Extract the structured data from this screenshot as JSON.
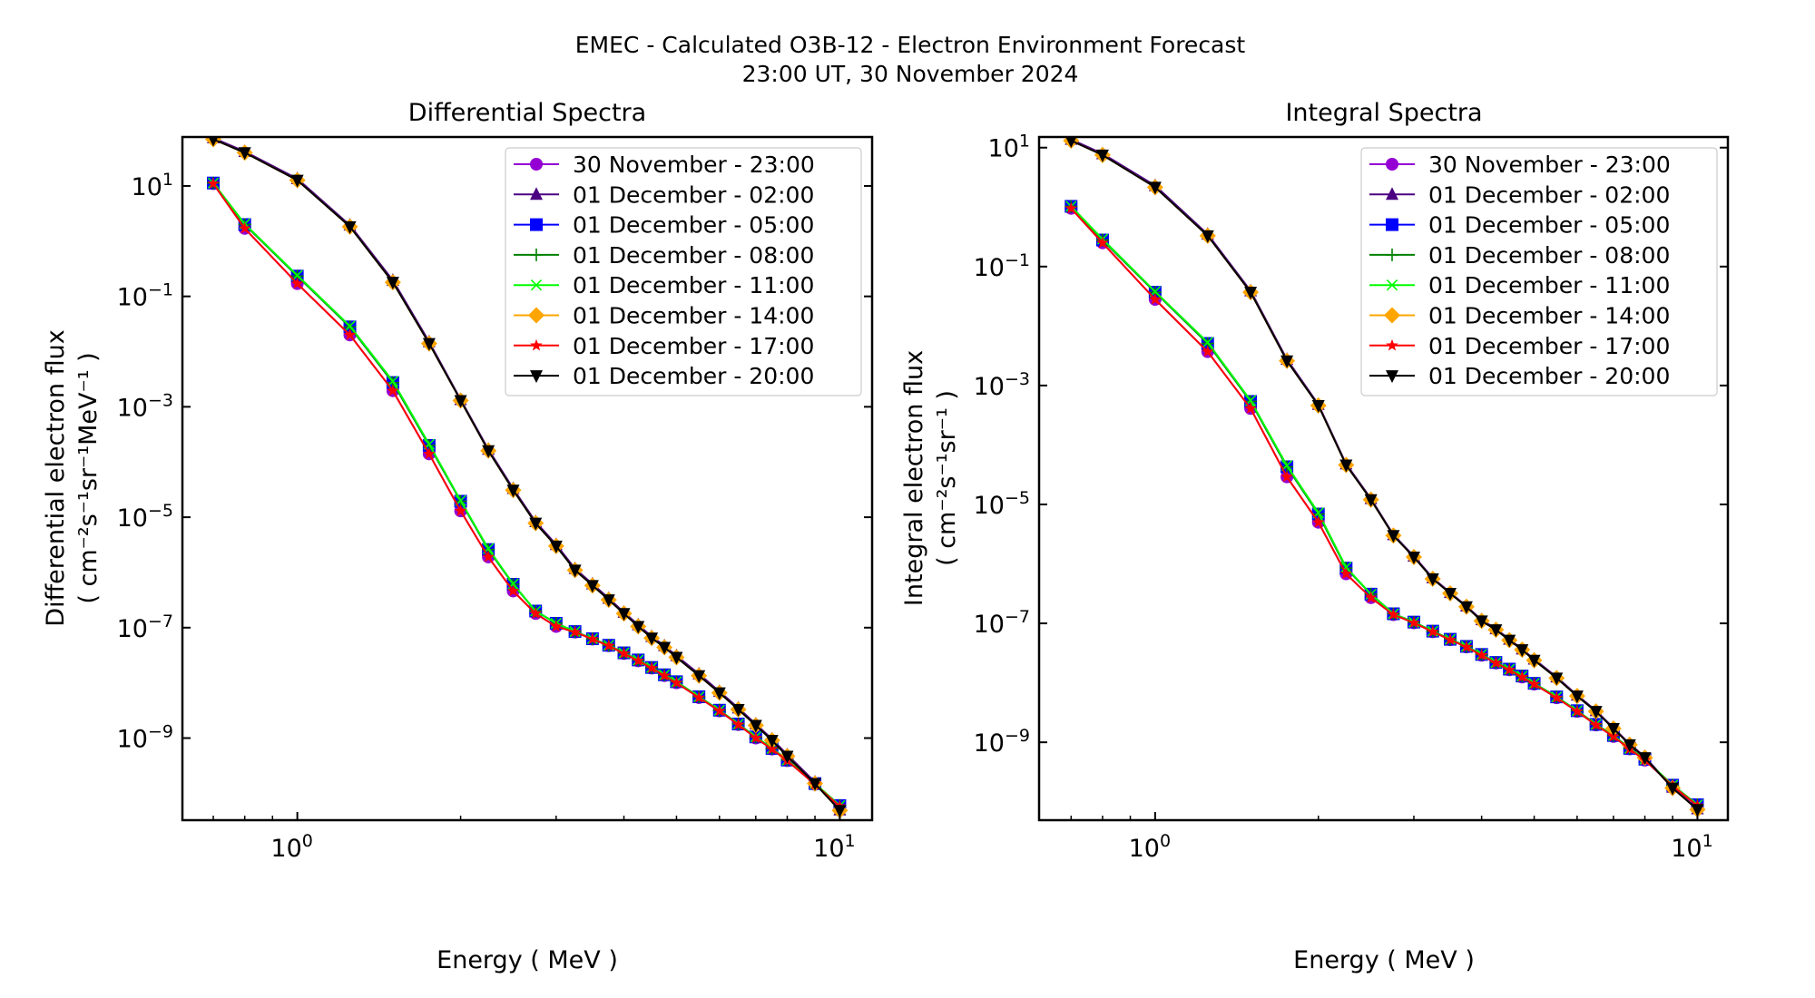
{
  "figure": {
    "title_line1": "EMEC - Calculated O3B-12 - Electron Environment Forecast",
    "title_line2": "23:00 UT, 30 November 2024"
  },
  "legend_entries": [
    {
      "label": "30 November - 23:00",
      "color": "#9400d3",
      "marker": "circle"
    },
    {
      "label": "01 December - 02:00",
      "color": "#4b0082",
      "marker": "triangle-up"
    },
    {
      "label": "01 December - 05:00",
      "color": "#0000ff",
      "marker": "square"
    },
    {
      "label": "01 December - 08:00",
      "color": "#008000",
      "marker": "plus"
    },
    {
      "label": "01 December - 11:00",
      "color": "#00ff00",
      "marker": "x"
    },
    {
      "label": "01 December - 14:00",
      "color": "#ffa500",
      "marker": "diamond"
    },
    {
      "label": "01 December - 17:00",
      "color": "#ff0000",
      "marker": "star"
    },
    {
      "label": "01 December - 20:00",
      "color": "#000000",
      "marker": "triangle-down"
    }
  ],
  "chart_data": [
    {
      "type": "line",
      "title": "Differential Spectra",
      "xlabel": "Energy ( MeV )",
      "ylabel_line1": "Differential electron flux",
      "ylabel_line2": "( cm⁻²s⁻¹sr⁻¹MeV⁻¹ )",
      "xscale": "log",
      "yscale": "log",
      "xlim": [
        0.614,
        11.47
      ],
      "ylim": [
        3.26e-11,
        77
      ],
      "xticks": [
        {
          "value": 1,
          "base": "10",
          "exp": "0"
        },
        {
          "value": 10,
          "base": "10",
          "exp": "1"
        }
      ],
      "yticks": [
        {
          "value": 10,
          "base": "10",
          "exp": "1"
        },
        {
          "value": 0.1,
          "base": "10",
          "exp": "−1"
        },
        {
          "value": 0.001,
          "base": "10",
          "exp": "−3"
        },
        {
          "value": 1e-05,
          "base": "10",
          "exp": "−5"
        },
        {
          "value": 1e-07,
          "base": "10",
          "exp": "−7"
        },
        {
          "value": 1e-09,
          "base": "10",
          "exp": "−9"
        }
      ],
      "legend": "top-right",
      "x": [
        0.7,
        0.8,
        1.0,
        1.25,
        1.5,
        1.75,
        2.0,
        2.25,
        2.5,
        2.75,
        3.0,
        3.25,
        3.5,
        3.75,
        4.0,
        4.25,
        4.5,
        4.75,
        5.0,
        5.5,
        6.0,
        6.5,
        7.0,
        7.5,
        8.0,
        9.0,
        10.0
      ],
      "series": [
        {
          "name": "30 November - 23:00",
          "values": [
            11,
            1.7,
            0.17,
            0.02,
            0.00195,
            0.00014,
            1.3e-05,
            1.9e-06,
            4.6e-07,
            1.8e-07,
            1.05e-07,
            8.3e-08,
            6.2e-08,
            4.7e-08,
            3.4e-08,
            2.5e-08,
            1.85e-08,
            1.35e-08,
            1e-08,
            5.4e-09,
            3.1e-09,
            1.75e-09,
            1e-09,
            6.3e-10,
            3.9e-10,
            1.45e-10,
            5.8e-11
          ]
        },
        {
          "name": "01 December - 02:00",
          "values": [
            74,
            42,
            13.5,
            1.95,
            0.195,
            0.015,
            0.00135,
            0.00017,
            3.3e-05,
            8.3e-06,
            3.2e-06,
            1.17e-06,
            6.2e-07,
            3.4e-07,
            1.9e-07,
            1.12e-07,
            6.9e-08,
            4.7e-08,
            3.1e-08,
            1.45e-08,
            7e-09,
            3.5e-09,
            1.8e-09,
            9.6e-10,
            5e-10,
            1.6e-10,
            5e-11
          ]
        },
        {
          "name": "01 December - 05:00",
          "values": [
            11.3,
            2.0,
            0.233,
            0.028,
            0.00275,
            0.0002,
            1.95e-05,
            2.6e-06,
            6.1e-07,
            2e-07,
            1.2e-07,
            8.5e-08,
            6.3e-08,
            4.8e-08,
            3.5e-08,
            2.6e-08,
            1.9e-08,
            1.4e-08,
            1.05e-08,
            5.6e-09,
            3.2e-09,
            1.8e-09,
            1.05e-09,
            6.5e-10,
            4e-10,
            1.5e-10,
            6e-11
          ]
        },
        {
          "name": "01 December - 08:00",
          "values": [
            11.3,
            2.0,
            0.233,
            0.028,
            0.00275,
            0.0002,
            1.95e-05,
            2.6e-06,
            6.1e-07,
            2e-07,
            1.2e-07,
            8.5e-08,
            6.3e-08,
            4.8e-08,
            3.5e-08,
            2.6e-08,
            1.9e-08,
            1.4e-08,
            1.05e-08,
            5.6e-09,
            3.2e-09,
            1.8e-09,
            1.05e-09,
            6.5e-10,
            4e-10,
            1.5e-10,
            6e-11
          ]
        },
        {
          "name": "01 December - 11:00",
          "values": [
            11.3,
            2.05,
            0.24,
            0.029,
            0.0029,
            0.00021,
            2e-05,
            2.7e-06,
            6.2e-07,
            2e-07,
            1.2e-07,
            8.5e-08,
            6.3e-08,
            4.8e-08,
            3.5e-08,
            2.6e-08,
            1.9e-08,
            1.4e-08,
            1.05e-08,
            5.6e-09,
            3.2e-09,
            1.8e-09,
            1.05e-09,
            6.5e-10,
            4e-10,
            1.5e-10,
            6e-11
          ]
        },
        {
          "name": "01 December - 14:00",
          "values": [
            70,
            40,
            12.7,
            1.83,
            0.18,
            0.014,
            0.0013,
            0.00016,
            3.1e-05,
            7.8e-06,
            3e-06,
            1.1e-06,
            5.8e-07,
            3.2e-07,
            1.8e-07,
            1.05e-07,
            6.5e-08,
            4.4e-08,
            2.9e-08,
            1.35e-08,
            6.6e-09,
            3.3e-09,
            1.7e-09,
            9.1e-10,
            4.7e-10,
            1.5e-10,
            4.9e-11
          ]
        },
        {
          "name": "01 December - 17:00",
          "values": [
            11,
            1.7,
            0.17,
            0.02,
            0.00195,
            0.00014,
            1.3e-05,
            1.9e-06,
            4.6e-07,
            1.8e-07,
            1.05e-07,
            8.3e-08,
            6.2e-08,
            4.7e-08,
            3.4e-08,
            2.5e-08,
            1.85e-08,
            1.35e-08,
            1e-08,
            5.4e-09,
            3.1e-09,
            1.75e-09,
            1e-09,
            6.3e-10,
            3.9e-10,
            1.45e-10,
            5.8e-11
          ]
        },
        {
          "name": "01 December - 20:00",
          "values": [
            70,
            40,
            12.7,
            1.83,
            0.18,
            0.014,
            0.0013,
            0.00016,
            3.1e-05,
            7.8e-06,
            3e-06,
            1.1e-06,
            5.8e-07,
            3.2e-07,
            1.8e-07,
            1.05e-07,
            6.5e-08,
            4.4e-08,
            2.9e-08,
            1.35e-08,
            6.6e-09,
            3.3e-09,
            1.7e-09,
            9.1e-10,
            4.7e-10,
            1.5e-10,
            4.9e-11
          ]
        }
      ]
    },
    {
      "type": "line",
      "title": "Integral Spectra",
      "xlabel": "Energy ( MeV )",
      "ylabel_line1": "Integral electron flux",
      "ylabel_line2": "( cm⁻²s⁻¹sr⁻¹ )",
      "xscale": "log",
      "yscale": "log",
      "xlim": [
        0.611,
        11.38
      ],
      "ylim": [
        4.9e-11,
        15.1
      ],
      "xticks": [
        {
          "value": 1,
          "base": "10",
          "exp": "0"
        },
        {
          "value": 10,
          "base": "10",
          "exp": "1"
        }
      ],
      "yticks": [
        {
          "value": 10,
          "base": "10",
          "exp": "1"
        },
        {
          "value": 0.1,
          "base": "10",
          "exp": "−1"
        },
        {
          "value": 0.001,
          "base": "10",
          "exp": "−3"
        },
        {
          "value": 1e-05,
          "base": "10",
          "exp": "−5"
        },
        {
          "value": 1e-07,
          "base": "10",
          "exp": "−7"
        },
        {
          "value": 1e-09,
          "base": "10",
          "exp": "−9"
        }
      ],
      "legend": "top-right",
      "x": [
        0.7,
        0.8,
        1.0,
        1.25,
        1.5,
        1.75,
        2.0,
        2.25,
        2.5,
        2.75,
        3.0,
        3.25,
        3.5,
        3.75,
        4.0,
        4.25,
        4.5,
        4.75,
        5.0,
        5.5,
        6.0,
        6.5,
        7.0,
        7.5,
        8.0,
        9.0,
        10.0
      ],
      "series": [
        {
          "name": "30 November - 23:00",
          "values": [
            0.95,
            0.25,
            0.028,
            0.0037,
            0.00041,
            2.9e-05,
            5e-06,
            6.8e-07,
            2.7e-07,
            1.4e-07,
            1.02e-07,
            7.2e-08,
            5.3e-08,
            4e-08,
            2.9e-08,
            2.15e-08,
            1.65e-08,
            1.25e-08,
            9.5e-09,
            5.6e-09,
            3.3e-09,
            1.95e-09,
            1.25e-09,
            7.7e-10,
            5e-10,
            1.85e-10,
            8.6e-11
          ]
        },
        {
          "name": "01 December - 02:00",
          "values": [
            13.8,
            7.9,
            2.3,
            0.35,
            0.039,
            0.00275,
            0.00048,
            4.8e-05,
            1.25e-05,
            3.1e-06,
            1.35e-06,
            5.8e-07,
            3.3e-07,
            1.95e-07,
            1.15e-07,
            8.1e-08,
            5.4e-08,
            3.7e-08,
            2.5e-08,
            1.25e-08,
            6.2e-09,
            3.4e-09,
            1.75e-09,
            9.4e-10,
            5.7e-10,
            1.75e-10,
            7.6e-11
          ]
        },
        {
          "name": "01 December - 05:00",
          "values": [
            1.03,
            0.28,
            0.037,
            0.0051,
            0.00054,
            4.3e-05,
            6.9e-06,
            8.5e-07,
            3.1e-07,
            1.45e-07,
            1.05e-07,
            7.4e-08,
            5.4e-08,
            4.1e-08,
            3e-08,
            2.2e-08,
            1.7e-08,
            1.3e-08,
            9.8e-09,
            5.8e-09,
            3.4e-09,
            2e-09,
            1.3e-09,
            7.9e-10,
            5.2e-10,
            1.9e-10,
            8.9e-11
          ]
        },
        {
          "name": "01 December - 08:00",
          "values": [
            1.03,
            0.28,
            0.037,
            0.0051,
            0.00054,
            4.3e-05,
            6.9e-06,
            8.5e-07,
            3.1e-07,
            1.45e-07,
            1.05e-07,
            7.4e-08,
            5.4e-08,
            4.1e-08,
            3e-08,
            2.2e-08,
            1.7e-08,
            1.3e-08,
            9.8e-09,
            5.8e-09,
            3.4e-09,
            2e-09,
            1.3e-09,
            7.9e-10,
            5.2e-10,
            1.9e-10,
            8.9e-11
          ]
        },
        {
          "name": "01 December - 11:00",
          "values": [
            1.03,
            0.29,
            0.038,
            0.0053,
            0.00056,
            4.5e-05,
            7.2e-06,
            8.8e-07,
            3.1e-07,
            1.45e-07,
            1.05e-07,
            7.4e-08,
            5.4e-08,
            4.1e-08,
            3e-08,
            2.2e-08,
            1.7e-08,
            1.3e-08,
            9.8e-09,
            5.8e-09,
            3.4e-09,
            2e-09,
            1.3e-09,
            7.9e-10,
            5.2e-10,
            1.9e-10,
            8.9e-11
          ]
        },
        {
          "name": "01 December - 14:00",
          "values": [
            13.1,
            7.5,
            2.16,
            0.33,
            0.037,
            0.0026,
            0.00046,
            4.6e-05,
            1.2e-05,
            3e-06,
            1.3e-06,
            5.6e-07,
            3.2e-07,
            1.9e-07,
            1.1e-07,
            7.8e-08,
            5.2e-08,
            3.6e-08,
            2.4e-08,
            1.2e-08,
            6e-09,
            3.3e-09,
            1.7e-09,
            9.1e-10,
            5.5e-10,
            1.7e-10,
            7.4e-11
          ]
        },
        {
          "name": "01 December - 17:00",
          "values": [
            0.95,
            0.25,
            0.028,
            0.0037,
            0.00041,
            2.9e-05,
            5e-06,
            6.8e-07,
            2.7e-07,
            1.4e-07,
            1.02e-07,
            7.2e-08,
            5.3e-08,
            4e-08,
            2.9e-08,
            2.15e-08,
            1.65e-08,
            1.25e-08,
            9.5e-09,
            5.6e-09,
            3.3e-09,
            1.95e-09,
            1.25e-09,
            7.7e-10,
            5e-10,
            1.85e-10,
            8.6e-11
          ]
        },
        {
          "name": "01 December - 20:00",
          "values": [
            13.1,
            7.5,
            2.16,
            0.33,
            0.037,
            0.0026,
            0.00046,
            4.6e-05,
            1.2e-05,
            3e-06,
            1.3e-06,
            5.6e-07,
            3.2e-07,
            1.9e-07,
            1.1e-07,
            7.8e-08,
            5.2e-08,
            3.6e-08,
            2.4e-08,
            1.2e-08,
            6e-09,
            3.3e-09,
            1.7e-09,
            9.1e-10,
            5.5e-10,
            1.7e-10,
            7.4e-11
          ]
        }
      ]
    }
  ]
}
